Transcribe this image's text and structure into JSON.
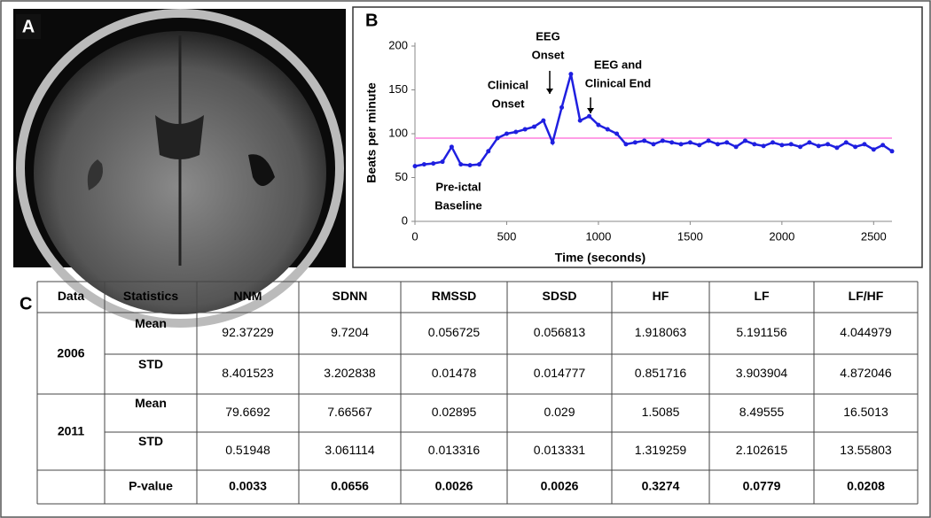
{
  "panels": {
    "a": "A",
    "b": "B",
    "c": "C"
  },
  "chart_data": {
    "type": "line",
    "x_label": "Time (seconds)",
    "y_label": "Beats per minute",
    "x": [
      0,
      50,
      100,
      150,
      200,
      250,
      300,
      350,
      400,
      450,
      500,
      550,
      600,
      650,
      700,
      750,
      800,
      850,
      900,
      950,
      1000,
      1050,
      1100,
      1150,
      1200,
      1250,
      1300,
      1350,
      1400,
      1450,
      1500,
      1550,
      1600,
      1650,
      1700,
      1750,
      1800,
      1850,
      1900,
      1950,
      2000,
      2050,
      2100,
      2150,
      2200,
      2250,
      2300,
      2350,
      2400,
      2450,
      2500,
      2550,
      2600
    ],
    "series": [
      {
        "color": "#1f1fe0",
        "values": [
          63,
          65,
          66,
          68,
          85,
          65,
          64,
          65,
          80,
          95,
          100,
          102,
          105,
          108,
          115,
          90,
          130,
          168,
          115,
          120,
          110,
          105,
          100,
          88,
          90,
          92,
          88,
          92,
          90,
          88,
          90,
          87,
          92,
          88,
          90,
          85,
          92,
          88,
          86,
          90,
          87,
          88,
          85,
          90,
          86,
          88,
          84,
          90,
          85,
          88,
          82,
          87,
          80
        ]
      }
    ],
    "reference_line": {
      "value": 95,
      "color": "#ff9ee6"
    },
    "xlim": [
      0,
      2600
    ],
    "xticks": [
      0,
      500,
      1000,
      1500,
      2000,
      2500
    ],
    "ylim": [
      0,
      200
    ],
    "yticks": [
      0,
      50,
      100,
      150,
      200
    ],
    "annotations": [
      {
        "lines": [
          "Pre-ictal",
          "Baseline"
        ]
      },
      {
        "lines": [
          "Clinical",
          "Onset"
        ]
      },
      {
        "lines": [
          "EEG",
          "Onset"
        ]
      },
      {
        "lines": [
          "EEG and",
          "Clinical End"
        ]
      }
    ]
  },
  "table": {
    "header": [
      "Data",
      "Statistics",
      "NNM",
      "SDNN",
      "RMSSD",
      "SDSD",
      "HF",
      "LF",
      "LF/HF"
    ],
    "groups": [
      {
        "data": "2006",
        "rows": [
          {
            "statistic": "Mean",
            "values": [
              "92.37229",
              "9.7204",
              "0.056725",
              "0.056813",
              "1.918063",
              "5.191156",
              "4.044979"
            ]
          },
          {
            "statistic": "STD",
            "values": [
              "8.401523",
              "3.202838",
              "0.01478",
              "0.014777",
              "0.851716",
              "3.903904",
              "4.872046"
            ]
          }
        ]
      },
      {
        "data": "2011",
        "rows": [
          {
            "statistic": "Mean",
            "values": [
              "79.6692",
              "7.66567",
              "0.02895",
              "0.029",
              "1.5085",
              "8.49555",
              "16.5013"
            ]
          },
          {
            "statistic": "STD",
            "values": [
              "0.51948",
              "3.061114",
              "0.013316",
              "0.013331",
              "1.319259",
              "2.102615",
              "13.55803"
            ]
          }
        ]
      }
    ],
    "pvalue": {
      "label": "P-value",
      "values": [
        "0.0033",
        "0.0656",
        "0.0026",
        "0.0026",
        "0.3274",
        "0.0779",
        "0.0208"
      ]
    }
  }
}
